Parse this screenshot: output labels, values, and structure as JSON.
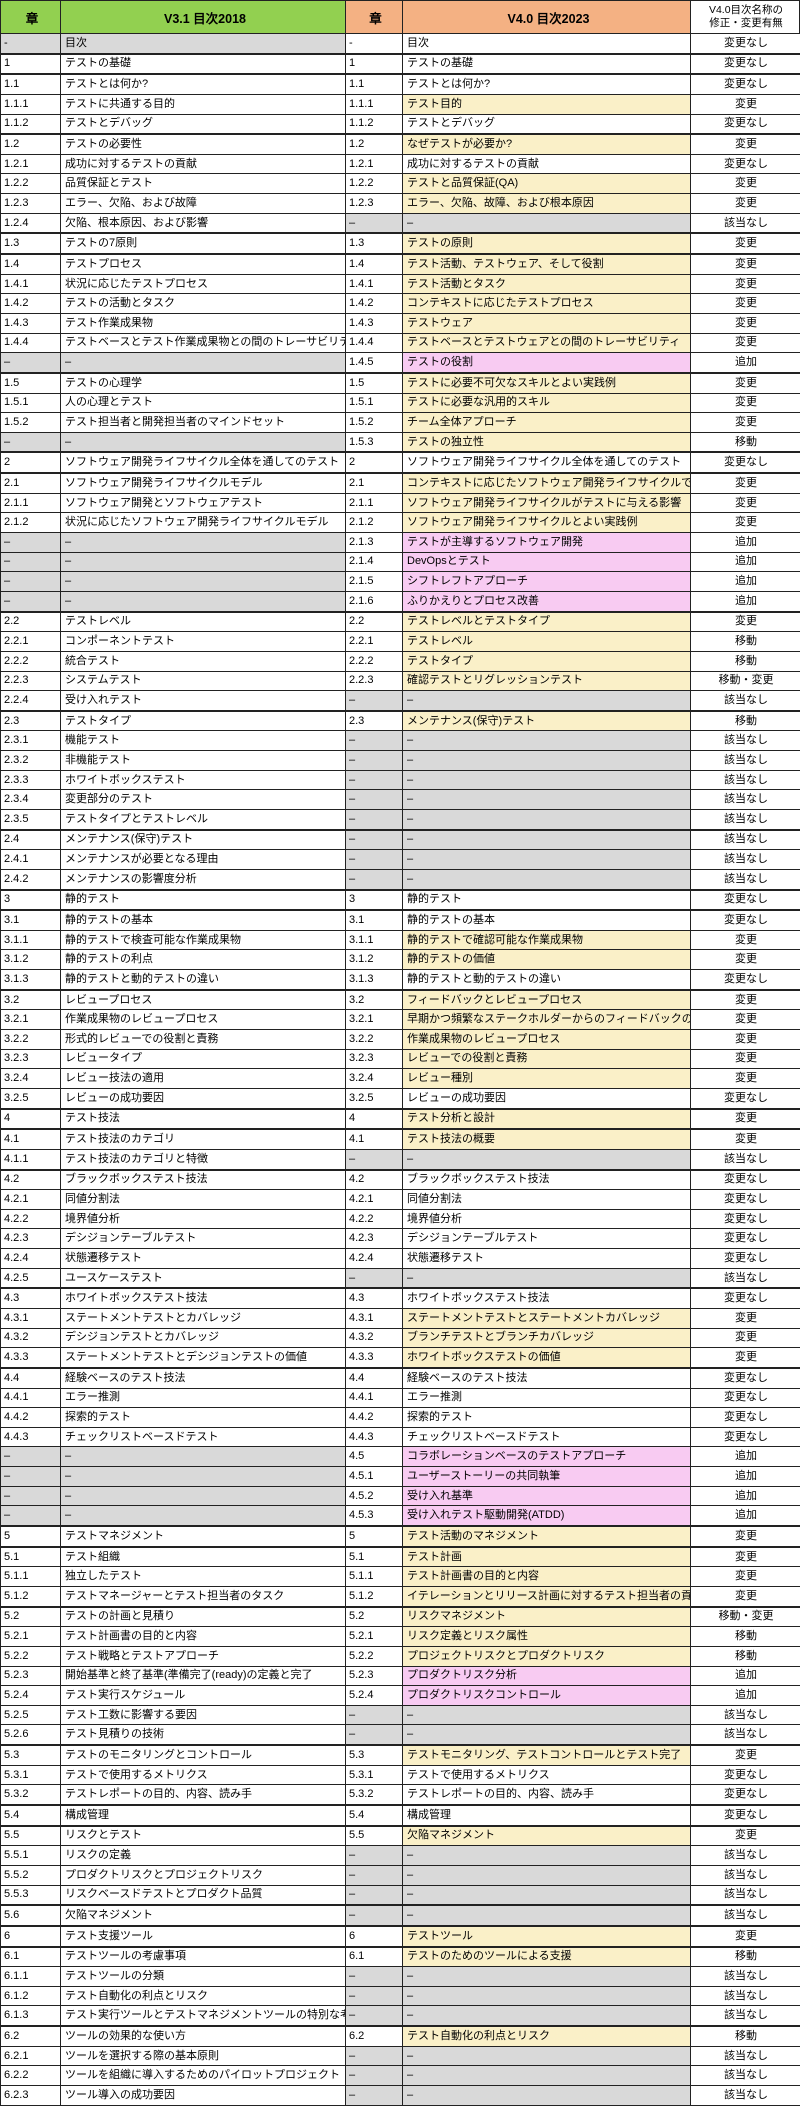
{
  "table": {
    "dash": "–",
    "header": {
      "col1": "章",
      "col2": "V3.1 目次2018",
      "col3": "章",
      "col4": "V4.0 目次2023",
      "col5_line1": "V4.0目次名称の",
      "col5_line2": "修正・変更有無"
    },
    "colors": {
      "header_green": "#92D050",
      "header_orange": "#F4B183",
      "yellow": "#FAF0C8",
      "pink": "#F8CBF2",
      "gray": "#D9D9D9",
      "border": "#222222"
    },
    "status_color_key": {
      "変更なし": null,
      "変更": "yellow",
      "移動": "yellow",
      "移動・変更": "yellow",
      "追加": "pink",
      "該当なし": "gray"
    },
    "rows": [
      [
        "-",
        "目次",
        "-",
        "目次",
        "変更なし"
      ],
      [
        "1",
        "テストの基礎",
        "1",
        "テストの基礎",
        "変更なし"
      ],
      [
        "1.1",
        "テストとは何か?",
        "1.1",
        "テストとは何か?",
        "変更なし"
      ],
      [
        "1.1.1",
        "テストに共通する目的",
        "1.1.1",
        "テスト目的",
        "変更"
      ],
      [
        "1.1.2",
        "テストとデバッグ",
        "1.1.2",
        "テストとデバッグ",
        "変更なし"
      ],
      [
        "1.2",
        "テストの必要性",
        "1.2",
        "なぜテストが必要か?",
        "変更"
      ],
      [
        "1.2.1",
        "成功に対するテストの貢献",
        "1.2.1",
        "成功に対するテストの貢献",
        "変更なし"
      ],
      [
        "1.2.2",
        "品質保証とテスト",
        "1.2.2",
        "テストと品質保証(QA)",
        "変更"
      ],
      [
        "1.2.3",
        "エラー、欠陥、および故障",
        "1.2.3",
        "エラー、欠陥、故障、および根本原因",
        "変更"
      ],
      [
        "1.2.4",
        "欠陥、根本原因、および影響",
        "–",
        "–",
        "該当なし"
      ],
      [
        "1.3",
        "テストの7原則",
        "1.3",
        "テストの原則",
        "変更"
      ],
      [
        "1.4",
        "テストプロセス",
        "1.4",
        "テスト活動、テストウェア、そして役割",
        "変更"
      ],
      [
        "1.4.1",
        "状況に応じたテストプロセス",
        "1.4.1",
        "テスト活動とタスク",
        "変更"
      ],
      [
        "1.4.2",
        "テストの活動とタスク",
        "1.4.2",
        "コンテキストに応じたテストプロセス",
        "変更"
      ],
      [
        "1.4.3",
        "テスト作業成果物",
        "1.4.3",
        "テストウェア",
        "変更"
      ],
      [
        "1.4.4",
        "テストベースとテスト作業成果物との間のトレーサビリティ",
        "1.4.4",
        "テストベースとテストウェアとの間のトレーサビリティ",
        "変更"
      ],
      [
        "–",
        "–",
        "1.4.5",
        "テストの役割",
        "追加"
      ],
      [
        "1.5",
        "テストの心理学",
        "1.5",
        "テストに必要不可欠なスキルとよい実践例",
        "変更"
      ],
      [
        "1.5.1",
        "人の心理とテスト",
        "1.5.1",
        "テストに必要な汎用的スキル",
        "変更"
      ],
      [
        "1.5.2",
        "テスト担当者と開発担当者のマインドセット",
        "1.5.2",
        "チーム全体アプローチ",
        "変更"
      ],
      [
        "–",
        "–",
        "1.5.3",
        "テストの独立性",
        "移動"
      ],
      [
        "2",
        "ソフトウェア開発ライフサイクル全体を通してのテスト",
        "2",
        "ソフトウェア開発ライフサイクル全体を通してのテスト",
        "変更なし"
      ],
      [
        "2.1",
        "ソフトウェア開発ライフサイクルモデル",
        "2.1",
        "コンテキストに応じたソフトウェア開発ライフサイクルでのテスト",
        "変更"
      ],
      [
        "2.1.1",
        "ソフトウェア開発とソフトウェアテスト",
        "2.1.1",
        "ソフトウェア開発ライフサイクルがテストに与える影響",
        "変更"
      ],
      [
        "2.1.2",
        "状況に応じたソフトウェア開発ライフサイクルモデル",
        "2.1.2",
        "ソフトウェア開発ライフサイクルとよい実践例",
        "変更"
      ],
      [
        "–",
        "–",
        "2.1.3",
        "テストが主導するソフトウェア開発",
        "追加"
      ],
      [
        "–",
        "–",
        "2.1.4",
        "DevOpsとテスト",
        "追加"
      ],
      [
        "–",
        "–",
        "2.1.5",
        "シフトレフトアプローチ",
        "追加"
      ],
      [
        "–",
        "–",
        "2.1.6",
        "ふりかえりとプロセス改善",
        "追加"
      ],
      [
        "2.2",
        "テストレベル",
        "2.2",
        "テストレベルとテストタイプ",
        "変更"
      ],
      [
        "2.2.1",
        "コンポーネントテスト",
        "2.2.1",
        "テストレベル",
        "移動"
      ],
      [
        "2.2.2",
        "統合テスト",
        "2.2.2",
        "テストタイプ",
        "移動"
      ],
      [
        "2.2.3",
        "システムテスト",
        "2.2.3",
        "確認テストとリグレッションテスト",
        "移動・変更"
      ],
      [
        "2.2.4",
        "受け入れテスト",
        "–",
        "–",
        "該当なし"
      ],
      [
        "2.3",
        "テストタイプ",
        "2.3",
        "メンテナンス(保守)テスト",
        "移動"
      ],
      [
        "2.3.1",
        "機能テスト",
        "–",
        "–",
        "該当なし"
      ],
      [
        "2.3.2",
        "非機能テスト",
        "–",
        "–",
        "該当なし"
      ],
      [
        "2.3.3",
        "ホワイトボックステスト",
        "–",
        "–",
        "該当なし"
      ],
      [
        "2.3.4",
        "変更部分のテスト",
        "–",
        "–",
        "該当なし"
      ],
      [
        "2.3.5",
        "テストタイプとテストレベル",
        "–",
        "–",
        "該当なし"
      ],
      [
        "2.4",
        "メンテナンス(保守)テスト",
        "–",
        "–",
        "該当なし"
      ],
      [
        "2.4.1",
        "メンテナンスが必要となる理由",
        "–",
        "–",
        "該当なし"
      ],
      [
        "2.4.2",
        "メンテナンスの影響度分析",
        "–",
        "–",
        "該当なし"
      ],
      [
        "3",
        "静的テスト",
        "3",
        "静的テスト",
        "変更なし"
      ],
      [
        "3.1",
        "静的テストの基本",
        "3.1",
        "静的テストの基本",
        "変更なし"
      ],
      [
        "3.1.1",
        "静的テストで検査可能な作業成果物",
        "3.1.1",
        "静的テストで確認可能な作業成果物",
        "変更"
      ],
      [
        "3.1.2",
        "静的テストの利点",
        "3.1.2",
        "静的テストの価値",
        "変更"
      ],
      [
        "3.1.3",
        "静的テストと動的テストの違い",
        "3.1.3",
        "静的テストと動的テストの違い",
        "変更なし"
      ],
      [
        "3.2",
        "レビュープロセス",
        "3.2",
        "フィードバックとレビュープロセス",
        "変更"
      ],
      [
        "3.2.1",
        "作業成果物のレビュープロセス",
        "3.2.1",
        "早期かつ頻繁なステークホルダーからのフィードバックの利点",
        "変更"
      ],
      [
        "3.2.2",
        "形式的レビューでの役割と責務",
        "3.2.2",
        "作業成果物のレビュープロセス",
        "変更"
      ],
      [
        "3.2.3",
        "レビュータイプ",
        "3.2.3",
        "レビューでの役割と責務",
        "変更"
      ],
      [
        "3.2.4",
        "レビュー技法の適用",
        "3.2.4",
        "レビュー種別",
        "変更"
      ],
      [
        "3.2.5",
        "レビューの成功要因",
        "3.2.5",
        "レビューの成功要因",
        "変更なし"
      ],
      [
        "4",
        "テスト技法",
        "4",
        "テスト分析と設計",
        "変更"
      ],
      [
        "4.1",
        "テスト技法のカテゴリ",
        "4.1",
        "テスト技法の概要",
        "変更"
      ],
      [
        "4.1.1",
        "テスト技法のカテゴリと特徴",
        "–",
        "–",
        "該当なし"
      ],
      [
        "4.2",
        "ブラックボックステスト技法",
        "4.2",
        "ブラックボックステスト技法",
        "変更なし"
      ],
      [
        "4.2.1",
        "同値分割法",
        "4.2.1",
        "同値分割法",
        "変更なし"
      ],
      [
        "4.2.2",
        "境界値分析",
        "4.2.2",
        "境界値分析",
        "変更なし"
      ],
      [
        "4.2.3",
        "デシジョンテーブルテスト",
        "4.2.3",
        "デシジョンテーブルテスト",
        "変更なし"
      ],
      [
        "4.2.4",
        "状態遷移テスト",
        "4.2.4",
        "状態遷移テスト",
        "変更なし"
      ],
      [
        "4.2.5",
        "ユースケーステスト",
        "–",
        "–",
        "該当なし"
      ],
      [
        "4.3",
        "ホワイトボックステスト技法",
        "4.3",
        "ホワイトボックステスト技法",
        "変更なし"
      ],
      [
        "4.3.1",
        "ステートメントテストとカバレッジ",
        "4.3.1",
        "ステートメントテストとステートメントカバレッジ",
        "変更"
      ],
      [
        "4.3.2",
        "デシジョンテストとカバレッジ",
        "4.3.2",
        "ブランチテストとブランチカバレッジ",
        "変更"
      ],
      [
        "4.3.3",
        "ステートメントテストとデシジョンテストの価値",
        "4.3.3",
        "ホワイトボックステストの価値",
        "変更"
      ],
      [
        "4.4",
        "経験ベースのテスト技法",
        "4.4",
        "経験ベースのテスト技法",
        "変更なし"
      ],
      [
        "4.4.1",
        "エラー推測",
        "4.4.1",
        "エラー推測",
        "変更なし"
      ],
      [
        "4.4.2",
        "探索的テスト",
        "4.4.2",
        "探索的テスト",
        "変更なし"
      ],
      [
        "4.4.3",
        "チェックリストベースドテスト",
        "4.4.3",
        "チェックリストベースドテスト",
        "変更なし"
      ],
      [
        "–",
        "–",
        "4.5",
        "コラボレーションベースのテストアプローチ",
        "追加"
      ],
      [
        "–",
        "–",
        "4.5.1",
        "ユーザーストーリーの共同執筆",
        "追加"
      ],
      [
        "–",
        "–",
        "4.5.2",
        "受け入れ基準",
        "追加"
      ],
      [
        "–",
        "–",
        "4.5.3",
        "受け入れテスト駆動開発(ATDD)",
        "追加"
      ],
      [
        "5",
        "テストマネジメント",
        "5",
        "テスト活動のマネジメント",
        "変更"
      ],
      [
        "5.1",
        "テスト組織",
        "5.1",
        "テスト計画",
        "変更"
      ],
      [
        "5.1.1",
        "独立したテスト",
        "5.1.1",
        "テスト計画書の目的と内容",
        "変更"
      ],
      [
        "5.1.2",
        "テストマネージャーとテスト担当者のタスク",
        "5.1.2",
        "イテレーションとリリース計画に対するテスト担当者の貢献",
        "変更"
      ],
      [
        "5.2",
        "テストの計画と見積り",
        "5.2",
        "リスクマネジメント",
        "移動・変更"
      ],
      [
        "5.2.1",
        "テスト計画書の目的と内容",
        "5.2.1",
        "リスク定義とリスク属性",
        "移動"
      ],
      [
        "5.2.2",
        "テスト戦略とテストアプローチ",
        "5.2.2",
        "プロジェクトリスクとプロダクトリスク",
        "移動"
      ],
      [
        "5.2.3",
        "開始基準と終了基準(準備完了(ready)の定義と完了",
        "5.2.3",
        "プロダクトリスク分析",
        "追加"
      ],
      [
        "5.2.4",
        "テスト実行スケジュール",
        "5.2.4",
        "プロダクトリスクコントロール",
        "追加"
      ],
      [
        "5.2.5",
        "テスト工数に影響する要因",
        "–",
        "–",
        "該当なし"
      ],
      [
        "5.2.6",
        "テスト見積りの技術",
        "–",
        "–",
        "該当なし"
      ],
      [
        "5.3",
        "テストのモニタリングとコントロール",
        "5.3",
        "テストモニタリング、テストコントロールとテスト完了",
        "変更"
      ],
      [
        "5.3.1",
        "テストで使用するメトリクス",
        "5.3.1",
        "テストで使用するメトリクス",
        "変更なし"
      ],
      [
        "5.3.2",
        "テストレポートの目的、内容、読み手",
        "5.3.2",
        "テストレポートの目的、内容、読み手",
        "変更なし"
      ],
      [
        "5.4",
        "構成管理",
        "5.4",
        "構成管理",
        "変更なし"
      ],
      [
        "5.5",
        "リスクとテスト",
        "5.5",
        "欠陥マネジメント",
        "変更"
      ],
      [
        "5.5.1",
        "リスクの定義",
        "–",
        "–",
        "該当なし"
      ],
      [
        "5.5.2",
        "プロダクトリスクとプロジェクトリスク",
        "–",
        "–",
        "該当なし"
      ],
      [
        "5.5.3",
        "リスクベースドテストとプロダクト品質",
        "–",
        "–",
        "該当なし"
      ],
      [
        "5.6",
        "欠陥マネジメント",
        "–",
        "–",
        "該当なし"
      ],
      [
        "6",
        "テスト支援ツール",
        "6",
        "テストツール",
        "変更"
      ],
      [
        "6.1",
        "テストツールの考慮事項",
        "6.1",
        "テストのためのツールによる支援",
        "移動"
      ],
      [
        "6.1.1",
        "テストツールの分類",
        "–",
        "–",
        "該当なし"
      ],
      [
        "6.1.2",
        "テスト自動化の利点とリスク",
        "–",
        "–",
        "該当なし"
      ],
      [
        "6.1.3",
        "テスト実行ツールとテストマネジメントツールの特別な考慮事項",
        "–",
        "–",
        "該当なし"
      ],
      [
        "6.2",
        "ツールの効果的な使い方",
        "6.2",
        "テスト自動化の利点とリスク",
        "移動"
      ],
      [
        "6.2.1",
        "ツールを選択する際の基本原則",
        "–",
        "–",
        "該当なし"
      ],
      [
        "6.2.2",
        "ツールを組織に導入するためのパイロットプロジェクト",
        "–",
        "–",
        "該当なし"
      ],
      [
        "6.2.3",
        "ツール導入の成功要因",
        "–",
        "–",
        "該当なし"
      ]
    ]
  }
}
